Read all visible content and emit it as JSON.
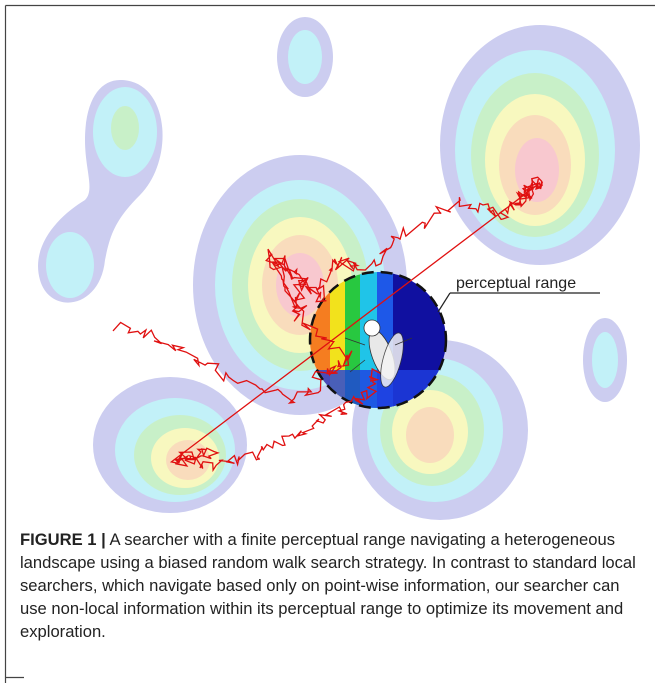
{
  "figure": {
    "annotation": "perceptual range",
    "caption": {
      "label": "FIGURE 1 |",
      "text": "A searcher with a finite perceptual range navigating a heterogeneous landscape using a biased random walk search strategy. In contrast to standard local searchers, which navigate based only on point-wise information, our searcher can use non-local information within its perceptual range to optimize its movement and exploration."
    }
  }
}
